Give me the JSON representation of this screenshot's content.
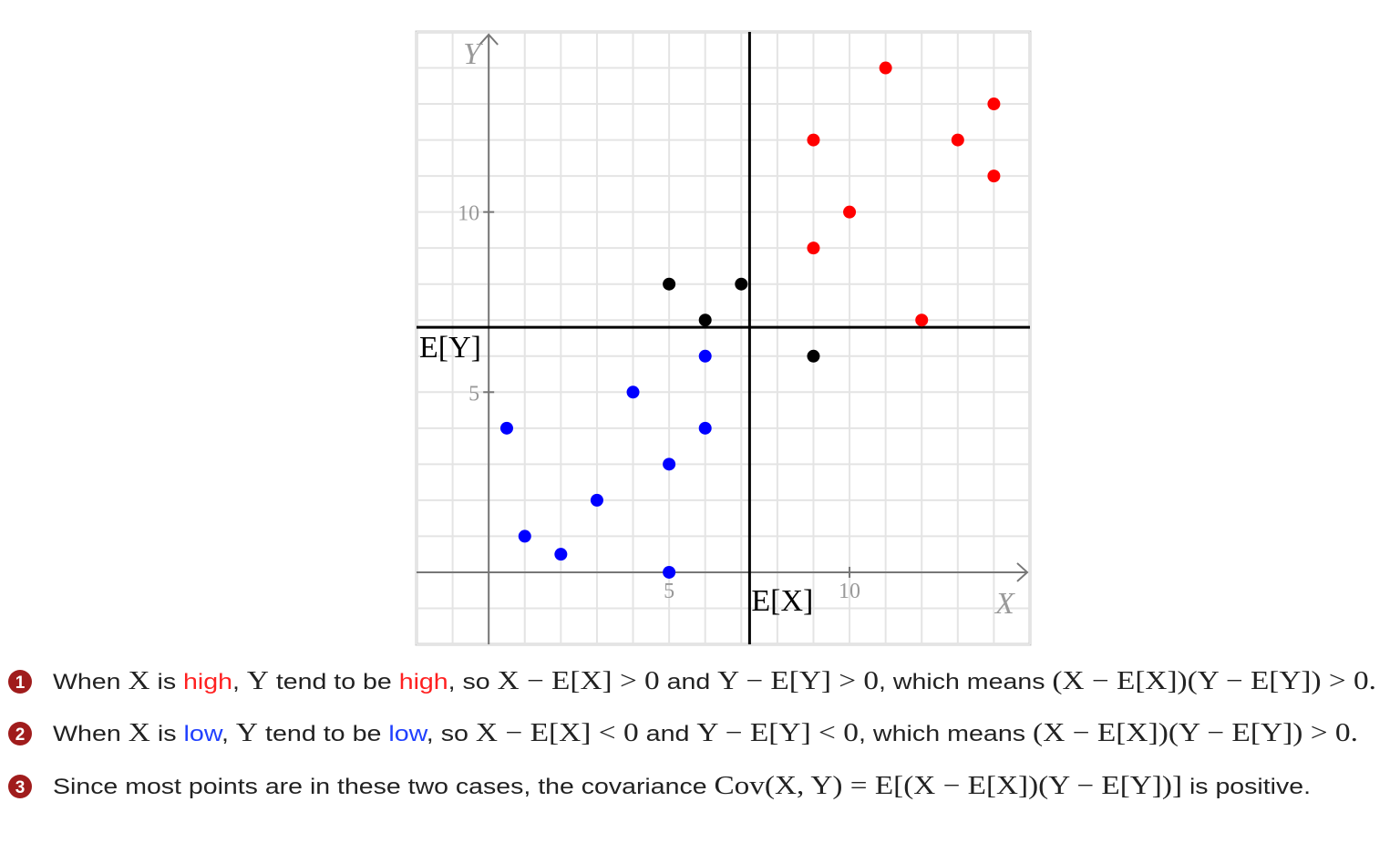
{
  "chart_data": {
    "type": "scatter",
    "x_label": "X",
    "y_label": "Y",
    "xlim": [
      -2,
      15
    ],
    "ylim": [
      -2,
      15
    ],
    "xticks": [
      5,
      10
    ],
    "yticks": [
      5,
      10
    ],
    "grid": true,
    "xgrid": [
      -2,
      -1,
      0,
      1,
      2,
      3,
      4,
      5,
      6,
      7,
      8,
      9,
      10,
      11,
      12,
      13,
      14,
      15
    ],
    "ygrid": [
      -2,
      -1,
      0,
      1,
      2,
      3,
      4,
      5,
      6,
      7,
      8,
      9,
      10,
      11,
      12,
      13,
      14,
      15
    ],
    "mean_x": 7.23,
    "mean_x_label": "E[X]",
    "mean_y": 6.8,
    "mean_y_label": "E[Y]",
    "series": [
      {
        "color": "#ff0000",
        "x": [
          11,
          14,
          9,
          13,
          14,
          10,
          9,
          12
        ],
        "values": [
          14,
          13,
          12,
          12,
          11,
          10,
          9,
          7
        ]
      },
      {
        "color": "#000000",
        "x": [
          5,
          7,
          6,
          9
        ],
        "values": [
          8,
          8,
          7,
          6
        ]
      },
      {
        "color": "#0000ff",
        "x": [
          6,
          4,
          0.5,
          6,
          5,
          3,
          1,
          2,
          5
        ],
        "values": [
          6,
          5,
          4,
          4,
          3,
          2,
          1,
          0.5,
          0
        ]
      }
    ]
  },
  "notes": [
    {
      "number": "1",
      "segments": [
        {
          "text": "When "
        },
        {
          "text": "X",
          "math": true
        },
        {
          "text": " is "
        },
        {
          "text": "high",
          "color": "#ff2020"
        },
        {
          "text": ", "
        },
        {
          "text": "Y",
          "math": true
        },
        {
          "text": " tend to be "
        },
        {
          "text": "high",
          "color": "#ff2020"
        },
        {
          "text": ", so "
        },
        {
          "text": "X − E[X] > 0",
          "math": true
        },
        {
          "text": " and "
        },
        {
          "text": "Y − E[Y] > 0",
          "math": true
        },
        {
          "text": ", which means "
        },
        {
          "text": "(X − E[X])(Y − E[Y]) > 0.",
          "math": true
        }
      ]
    },
    {
      "number": "2",
      "segments": [
        {
          "text": "When "
        },
        {
          "text": "X",
          "math": true
        },
        {
          "text": " is "
        },
        {
          "text": "low",
          "color": "#2040ff"
        },
        {
          "text": ", "
        },
        {
          "text": "Y",
          "math": true
        },
        {
          "text": " tend to be "
        },
        {
          "text": "low",
          "color": "#2040ff"
        },
        {
          "text": ", so "
        },
        {
          "text": "X − E[X] < 0",
          "math": true
        },
        {
          "text": " and "
        },
        {
          "text": "Y − E[Y] < 0",
          "math": true
        },
        {
          "text": ", which means "
        },
        {
          "text": "(X − E[X])(Y − E[Y]) > 0.",
          "math": true
        }
      ]
    },
    {
      "number": "3",
      "segments": [
        {
          "text": "Since most points are in these two cases, the covariance "
        },
        {
          "text": "Cov(X, Y) = E[(X − E[X])(Y − E[Y])]",
          "math": true
        },
        {
          "text": " is positive."
        }
      ]
    }
  ]
}
